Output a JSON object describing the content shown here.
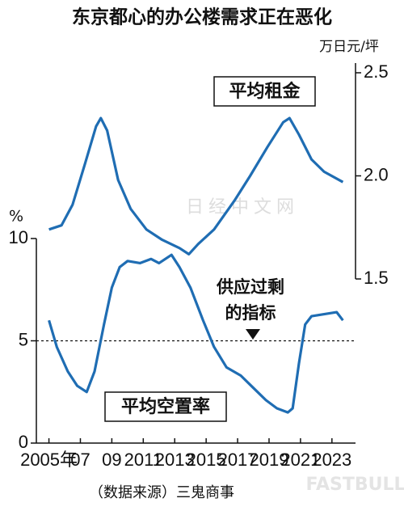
{
  "chart_data": {
    "type": "line",
    "title": "东京都心的办公楼需求正在恶化",
    "y2_unit": "万日元/坪",
    "y_unit": "%",
    "source": "（数据来源）三鬼商事",
    "watermarks": [
      "日经中文网",
      "FASTBULL"
    ],
    "annotation": [
      "供应过剩",
      "的指标"
    ],
    "reference_line": 5,
    "xlim": [
      2004.2,
      2024.5
    ],
    "xticks": [
      {
        "value": 2005,
        "label": "2005年"
      },
      {
        "value": 2007,
        "label": "07"
      },
      {
        "value": 2009,
        "label": "09"
      },
      2011,
      2013,
      2015,
      2017,
      2019,
      2021,
      2023
    ],
    "ylim": [
      0,
      10
    ],
    "yticks": [
      0,
      5,
      10
    ],
    "y2lim": [
      1.5,
      2.5
    ],
    "y2ticks": [
      1.5,
      {
        "value": 2,
        "label": "2.0"
      },
      2.5
    ],
    "series": [
      {
        "name": "平均租金",
        "color": "#1f6db3",
        "axis": "y2",
        "x": [
          2005.0,
          2005.8,
          2006.5,
          2007.3,
          2008.0,
          2008.3,
          2008.7,
          2009.4,
          2010.2,
          2011.2,
          2012.2,
          2013.3,
          2013.9,
          2014.5,
          2015.5,
          2016.8,
          2017.8,
          2018.9,
          2019.9,
          2020.3,
          2020.9,
          2021.7,
          2022.5,
          2023.7
        ],
        "values": [
          1.74,
          1.76,
          1.86,
          2.06,
          2.24,
          2.28,
          2.22,
          1.98,
          1.84,
          1.74,
          1.69,
          1.65,
          1.62,
          1.67,
          1.74,
          1.88,
          2.0,
          2.14,
          2.26,
          2.28,
          2.2,
          2.08,
          2.02,
          1.97
        ]
      },
      {
        "name": "平均空置率",
        "color": "#1f6db3",
        "axis": "y",
        "x": [
          2005.0,
          2005.5,
          2006.2,
          2006.8,
          2007.4,
          2007.9,
          2008.5,
          2009.0,
          2009.5,
          2010.0,
          2010.8,
          2011.5,
          2012.0,
          2012.8,
          2013.3,
          2014.0,
          2014.8,
          2015.5,
          2016.3,
          2017.2,
          2018.0,
          2018.8,
          2019.5,
          2020.2,
          2020.5,
          2020.9,
          2021.3,
          2021.7,
          2022.5,
          2023.3,
          2023.7
        ],
        "values": [
          6.0,
          4.7,
          3.5,
          2.8,
          2.5,
          3.5,
          5.8,
          7.6,
          8.6,
          8.9,
          8.8,
          9.0,
          8.8,
          9.2,
          8.6,
          7.6,
          6.0,
          4.7,
          3.7,
          3.3,
          2.7,
          2.1,
          1.7,
          1.5,
          1.7,
          3.9,
          5.8,
          6.2,
          6.3,
          6.4,
          6.0
        ]
      }
    ]
  }
}
